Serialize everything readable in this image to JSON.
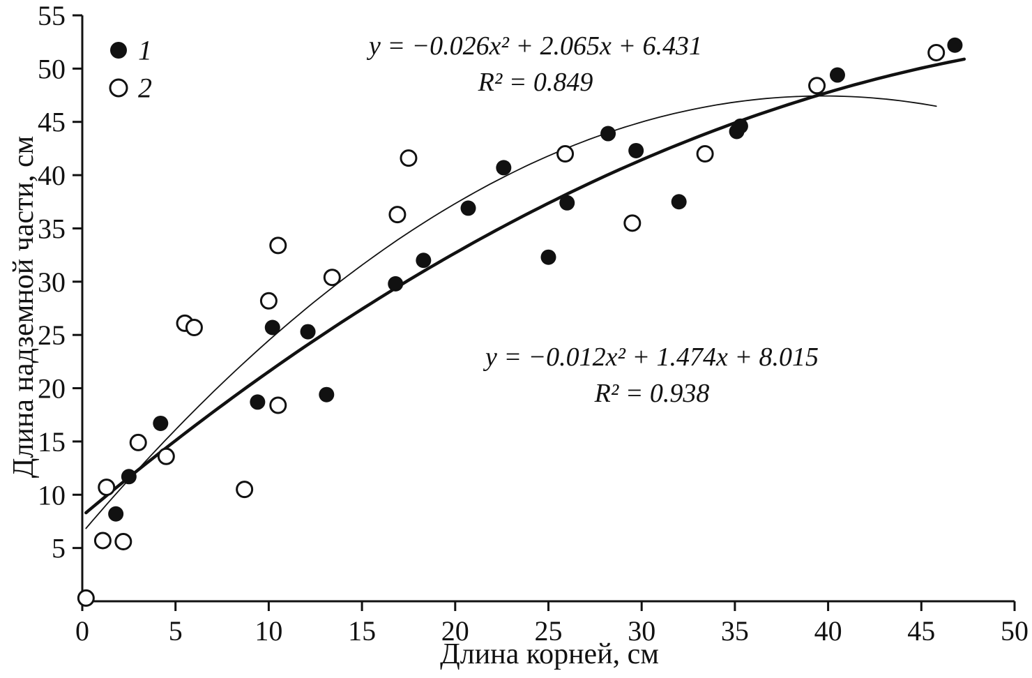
{
  "chart_data": {
    "type": "scatter",
    "title": "",
    "xlabel": "Длина корней, см",
    "ylabel": "Длина надземной части, см",
    "xlim": [
      0,
      50
    ],
    "ylim": [
      0,
      55
    ],
    "x_ticks": [
      0,
      5,
      10,
      15,
      20,
      25,
      30,
      35,
      40,
      45,
      50
    ],
    "y_ticks": [
      5,
      10,
      15,
      20,
      25,
      30,
      35,
      40,
      45,
      50,
      55
    ],
    "grid": false,
    "legend_position": "top-left-inside",
    "colors": {
      "marker": "#111111",
      "line": "#111111",
      "open_fill": "#ffffff"
    },
    "series": [
      {
        "name": "1",
        "marker": "filled",
        "points": [
          [
            1.8,
            8.2
          ],
          [
            2.5,
            11.7
          ],
          [
            4.2,
            16.7
          ],
          [
            9.4,
            18.7
          ],
          [
            10.2,
            25.7
          ],
          [
            12.1,
            25.3
          ],
          [
            13.1,
            19.4
          ],
          [
            16.8,
            29.8
          ],
          [
            18.3,
            32.0
          ],
          [
            20.7,
            36.9
          ],
          [
            22.6,
            40.7
          ],
          [
            25.0,
            32.3
          ],
          [
            26.0,
            37.4
          ],
          [
            28.2,
            43.9
          ],
          [
            29.7,
            42.3
          ],
          [
            32.0,
            37.5
          ],
          [
            35.1,
            44.1
          ],
          [
            35.3,
            44.6
          ],
          [
            40.5,
            49.4
          ],
          [
            46.8,
            52.2
          ]
        ]
      },
      {
        "name": "2",
        "marker": "open",
        "points": [
          [
            0.2,
            0.3
          ],
          [
            1.1,
            5.7
          ],
          [
            1.3,
            10.7
          ],
          [
            2.2,
            5.6
          ],
          [
            3.0,
            14.9
          ],
          [
            4.5,
            13.6
          ],
          [
            5.5,
            26.1
          ],
          [
            6.0,
            25.7
          ],
          [
            8.7,
            10.5
          ],
          [
            10.0,
            28.2
          ],
          [
            10.5,
            33.4
          ],
          [
            10.5,
            18.4
          ],
          [
            13.4,
            30.4
          ],
          [
            16.9,
            36.3
          ],
          [
            17.5,
            41.6
          ],
          [
            25.9,
            42.0
          ],
          [
            29.5,
            35.5
          ],
          [
            33.4,
            42.0
          ],
          [
            39.4,
            48.4
          ],
          [
            45.8,
            51.5
          ]
        ]
      }
    ],
    "trendlines": [
      {
        "series": "1",
        "a": -0.012,
        "b": 1.474,
        "c": 8.015,
        "x_range": [
          0.2,
          47.3
        ],
        "stroke_width": 4.5
      },
      {
        "series": "2",
        "a": -0.026,
        "b": 2.065,
        "c": 6.431,
        "x_range": [
          0.2,
          45.8
        ],
        "stroke_width": 1.8
      }
    ],
    "annotations": [
      {
        "formula": "y = −0.026x² + 2.065x + 6.431",
        "r2": "R² = 0.849"
      },
      {
        "formula": "y = −0.012x² + 1.474x + 8.015",
        "r2": "R² = 0.938"
      }
    ],
    "legend": [
      {
        "label": "1",
        "marker": "filled"
      },
      {
        "label": "2",
        "marker": "open"
      }
    ]
  }
}
